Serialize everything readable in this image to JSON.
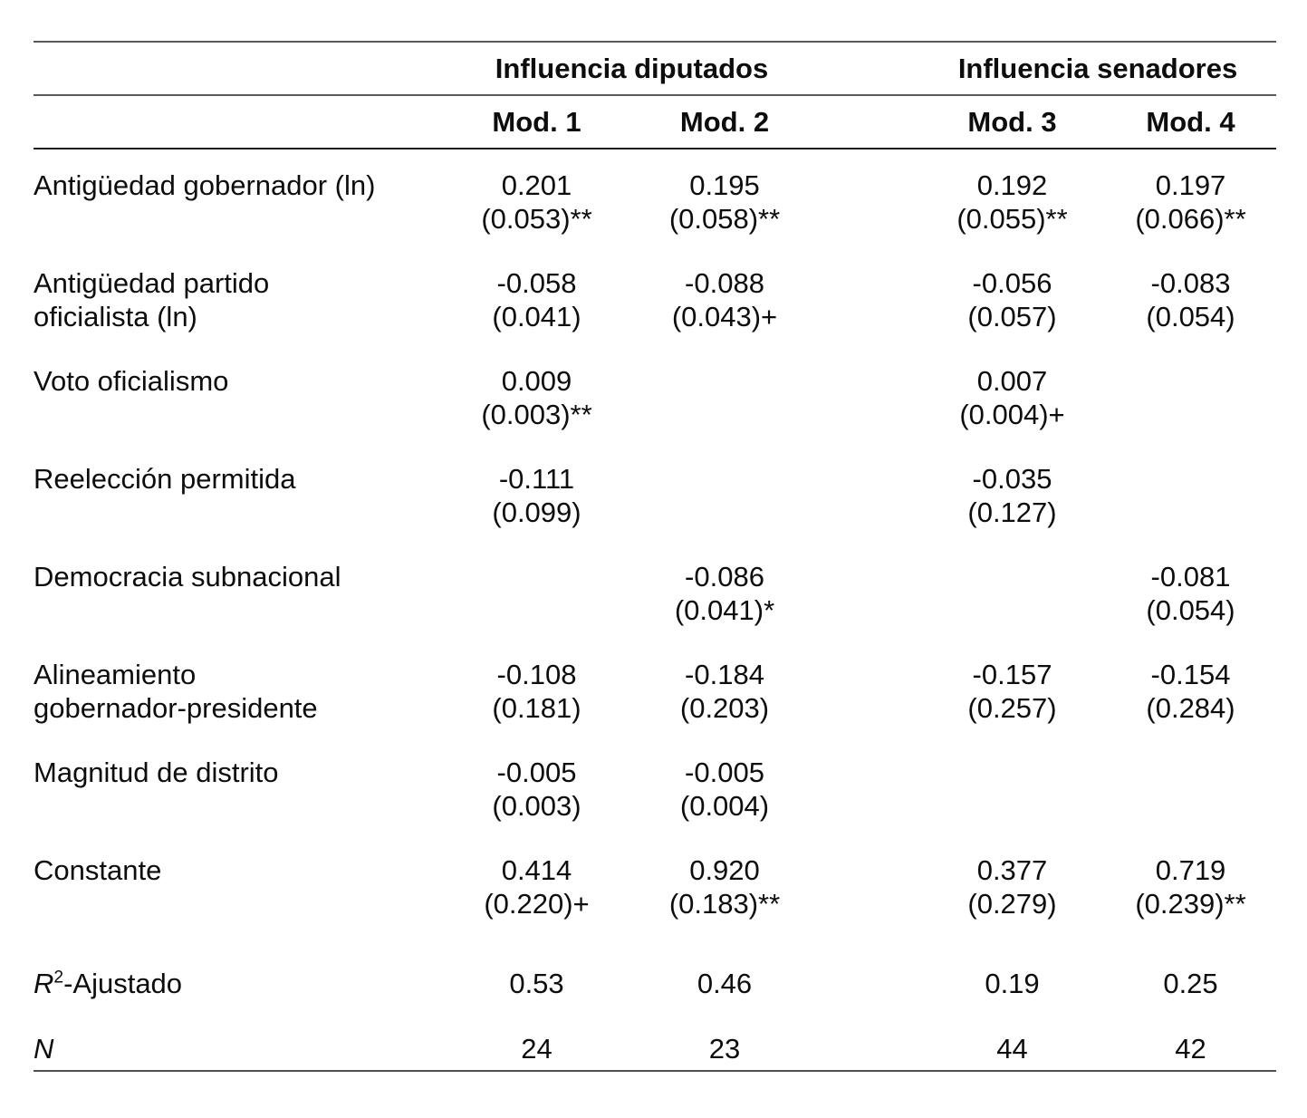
{
  "table": {
    "groups": [
      "Influencia diputados",
      "Influencia senadores"
    ],
    "models": [
      "Mod. 1",
      "Mod. 2",
      "Mod. 3",
      "Mod. 4"
    ],
    "rows": [
      {
        "label": [
          "Antigüedad gobernador (ln)"
        ],
        "cells": [
          [
            "0.201",
            "(0.053)**"
          ],
          [
            "0.195",
            "(0.058)**"
          ],
          [
            "0.192",
            "(0.055)**"
          ],
          [
            "0.197",
            "(0.066)**"
          ]
        ]
      },
      {
        "label": [
          "Antigüedad partido",
          "oficialista (ln)"
        ],
        "cells": [
          [
            "-0.058",
            "(0.041)"
          ],
          [
            "-0.088",
            "(0.043)+"
          ],
          [
            "-0.056",
            "(0.057)"
          ],
          [
            "-0.083",
            "(0.054)"
          ]
        ]
      },
      {
        "label": [
          "Voto oficialismo"
        ],
        "cells": [
          [
            "0.009",
            "(0.003)**"
          ],
          null,
          [
            "0.007",
            "(0.004)+"
          ],
          null
        ]
      },
      {
        "label": [
          "Reelección permitida"
        ],
        "cells": [
          [
            "-0.111",
            "(0.099)"
          ],
          null,
          [
            "-0.035",
            "(0.127)"
          ],
          null
        ]
      },
      {
        "label": [
          "Democracia subnacional"
        ],
        "cells": [
          null,
          [
            "-0.086",
            "(0.041)*"
          ],
          null,
          [
            "-0.081",
            "(0.054)"
          ]
        ]
      },
      {
        "label": [
          "Alineamiento",
          "gobernador-presidente"
        ],
        "cells": [
          [
            "-0.108",
            "(0.181)"
          ],
          [
            "-0.184",
            "(0.203)"
          ],
          [
            "-0.157",
            "(0.257)"
          ],
          [
            "-0.154",
            "(0.284)"
          ]
        ]
      },
      {
        "label": [
          "Magnitud de distrito"
        ],
        "cells": [
          [
            "-0.005",
            "(0.003)"
          ],
          [
            "-0.005",
            "(0.004)"
          ],
          null,
          null
        ]
      },
      {
        "label": [
          "Constante"
        ],
        "cells": [
          [
            "0.414",
            "(0.220)+"
          ],
          [
            "0.920",
            "(0.183)**"
          ],
          [
            "0.377",
            "(0.279)"
          ],
          [
            "0.719",
            "(0.239)**"
          ]
        ]
      }
    ],
    "stats": [
      {
        "label_italic": "R",
        "label_sup": "2",
        "label_rest": "-Ajustado",
        "values": [
          "0.53",
          "0.46",
          "0.19",
          "0.25"
        ],
        "row_class": "stat-r2",
        "row_name": "stat-row-r2-adjusted"
      },
      {
        "label_italic": "N",
        "label_sup": "",
        "label_rest": "",
        "values": [
          "24",
          "23",
          "44",
          "42"
        ],
        "row_class": "stat-n",
        "row_name": "stat-row-n"
      }
    ]
  }
}
